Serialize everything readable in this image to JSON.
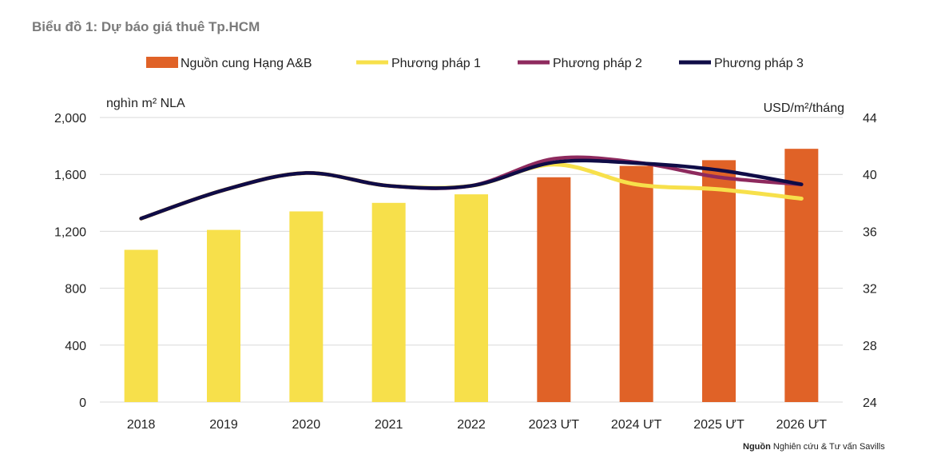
{
  "chart_data": {
    "type": "bar+line",
    "title": "Biểu đồ 1: Dự báo giá thuê Tp.HCM",
    "categories": [
      "2018",
      "2019",
      "2020",
      "2021",
      "2022",
      "2023 ƯT",
      "2024 ƯT",
      "2025 ƯT",
      "2026 ƯT"
    ],
    "ylabel_left": "nghìn m² NLA",
    "ylabel_right": "USD/m²/tháng",
    "ylim_left": [
      0,
      2000
    ],
    "yticks_left": [
      "0",
      "400",
      "800",
      "1,200",
      "1,600",
      "2,000"
    ],
    "ylim_right": [
      24,
      44
    ],
    "yticks_right": [
      "24",
      "28",
      "32",
      "36",
      "40",
      "44"
    ],
    "grid": true,
    "legend_position": "top",
    "bars": {
      "name": "Nguồn cung Hạng A&B",
      "values": [
        1070,
        1210,
        1340,
        1400,
        1460,
        1580,
        1660,
        1700,
        1780
      ],
      "colors": [
        "#f7e04b",
        "#f7e04b",
        "#f7e04b",
        "#f7e04b",
        "#f7e04b",
        "#e06227",
        "#e06227",
        "#e06227",
        "#e06227"
      ],
      "legend_color": "#e06227"
    },
    "series": [
      {
        "name": "Phương pháp 1",
        "color": "#f7e04b",
        "values": [
          36.9,
          38.9,
          40.1,
          39.2,
          39.2,
          40.7,
          39.3,
          38.95,
          38.3
        ]
      },
      {
        "name": "Phương pháp 2",
        "color": "#8e2a5e",
        "values": [
          36.9,
          38.9,
          40.1,
          39.2,
          39.2,
          41.1,
          40.85,
          39.8,
          39.3
        ]
      },
      {
        "name": "Phương pháp 3",
        "color": "#0f0c47",
        "values": [
          36.9,
          38.9,
          40.1,
          39.2,
          39.2,
          40.85,
          40.8,
          40.3,
          39.3
        ]
      }
    ]
  },
  "source": {
    "label": "Nguồn",
    "text": "Nghiên cứu & Tư vấn Savills"
  }
}
